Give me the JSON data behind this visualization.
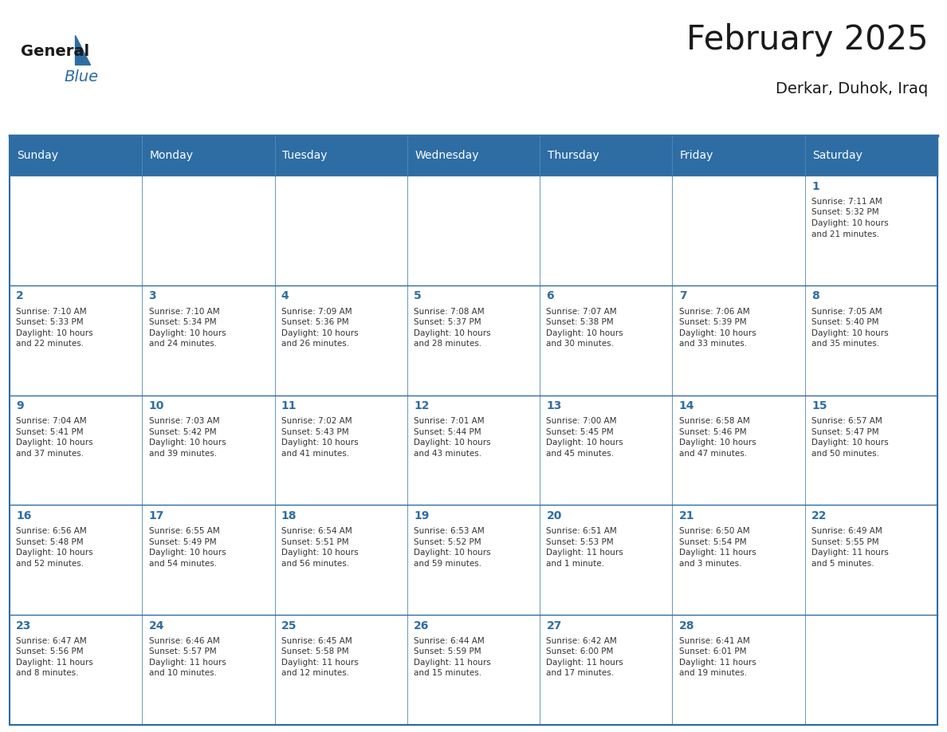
{
  "title": "February 2025",
  "subtitle": "Derkar, Duhok, Iraq",
  "header_bg_color": "#2E6DA4",
  "header_text_color": "#FFFFFF",
  "day_number_color": "#2E6DA4",
  "text_color": "#333333",
  "border_color": "#2E6DA4",
  "days_of_week": [
    "Sunday",
    "Monday",
    "Tuesday",
    "Wednesday",
    "Thursday",
    "Friday",
    "Saturday"
  ],
  "weeks": [
    [
      {
        "day": null,
        "info": null
      },
      {
        "day": null,
        "info": null
      },
      {
        "day": null,
        "info": null
      },
      {
        "day": null,
        "info": null
      },
      {
        "day": null,
        "info": null
      },
      {
        "day": null,
        "info": null
      },
      {
        "day": 1,
        "info": "Sunrise: 7:11 AM\nSunset: 5:32 PM\nDaylight: 10 hours\nand 21 minutes."
      }
    ],
    [
      {
        "day": 2,
        "info": "Sunrise: 7:10 AM\nSunset: 5:33 PM\nDaylight: 10 hours\nand 22 minutes."
      },
      {
        "day": 3,
        "info": "Sunrise: 7:10 AM\nSunset: 5:34 PM\nDaylight: 10 hours\nand 24 minutes."
      },
      {
        "day": 4,
        "info": "Sunrise: 7:09 AM\nSunset: 5:36 PM\nDaylight: 10 hours\nand 26 minutes."
      },
      {
        "day": 5,
        "info": "Sunrise: 7:08 AM\nSunset: 5:37 PM\nDaylight: 10 hours\nand 28 minutes."
      },
      {
        "day": 6,
        "info": "Sunrise: 7:07 AM\nSunset: 5:38 PM\nDaylight: 10 hours\nand 30 minutes."
      },
      {
        "day": 7,
        "info": "Sunrise: 7:06 AM\nSunset: 5:39 PM\nDaylight: 10 hours\nand 33 minutes."
      },
      {
        "day": 8,
        "info": "Sunrise: 7:05 AM\nSunset: 5:40 PM\nDaylight: 10 hours\nand 35 minutes."
      }
    ],
    [
      {
        "day": 9,
        "info": "Sunrise: 7:04 AM\nSunset: 5:41 PM\nDaylight: 10 hours\nand 37 minutes."
      },
      {
        "day": 10,
        "info": "Sunrise: 7:03 AM\nSunset: 5:42 PM\nDaylight: 10 hours\nand 39 minutes."
      },
      {
        "day": 11,
        "info": "Sunrise: 7:02 AM\nSunset: 5:43 PM\nDaylight: 10 hours\nand 41 minutes."
      },
      {
        "day": 12,
        "info": "Sunrise: 7:01 AM\nSunset: 5:44 PM\nDaylight: 10 hours\nand 43 minutes."
      },
      {
        "day": 13,
        "info": "Sunrise: 7:00 AM\nSunset: 5:45 PM\nDaylight: 10 hours\nand 45 minutes."
      },
      {
        "day": 14,
        "info": "Sunrise: 6:58 AM\nSunset: 5:46 PM\nDaylight: 10 hours\nand 47 minutes."
      },
      {
        "day": 15,
        "info": "Sunrise: 6:57 AM\nSunset: 5:47 PM\nDaylight: 10 hours\nand 50 minutes."
      }
    ],
    [
      {
        "day": 16,
        "info": "Sunrise: 6:56 AM\nSunset: 5:48 PM\nDaylight: 10 hours\nand 52 minutes."
      },
      {
        "day": 17,
        "info": "Sunrise: 6:55 AM\nSunset: 5:49 PM\nDaylight: 10 hours\nand 54 minutes."
      },
      {
        "day": 18,
        "info": "Sunrise: 6:54 AM\nSunset: 5:51 PM\nDaylight: 10 hours\nand 56 minutes."
      },
      {
        "day": 19,
        "info": "Sunrise: 6:53 AM\nSunset: 5:52 PM\nDaylight: 10 hours\nand 59 minutes."
      },
      {
        "day": 20,
        "info": "Sunrise: 6:51 AM\nSunset: 5:53 PM\nDaylight: 11 hours\nand 1 minute."
      },
      {
        "day": 21,
        "info": "Sunrise: 6:50 AM\nSunset: 5:54 PM\nDaylight: 11 hours\nand 3 minutes."
      },
      {
        "day": 22,
        "info": "Sunrise: 6:49 AM\nSunset: 5:55 PM\nDaylight: 11 hours\nand 5 minutes."
      }
    ],
    [
      {
        "day": 23,
        "info": "Sunrise: 6:47 AM\nSunset: 5:56 PM\nDaylight: 11 hours\nand 8 minutes."
      },
      {
        "day": 24,
        "info": "Sunrise: 6:46 AM\nSunset: 5:57 PM\nDaylight: 11 hours\nand 10 minutes."
      },
      {
        "day": 25,
        "info": "Sunrise: 6:45 AM\nSunset: 5:58 PM\nDaylight: 11 hours\nand 12 minutes."
      },
      {
        "day": 26,
        "info": "Sunrise: 6:44 AM\nSunset: 5:59 PM\nDaylight: 11 hours\nand 15 minutes."
      },
      {
        "day": 27,
        "info": "Sunrise: 6:42 AM\nSunset: 6:00 PM\nDaylight: 11 hours\nand 17 minutes."
      },
      {
        "day": 28,
        "info": "Sunrise: 6:41 AM\nSunset: 6:01 PM\nDaylight: 11 hours\nand 19 minutes."
      },
      {
        "day": null,
        "info": null
      }
    ]
  ],
  "logo_text_general": "General",
  "logo_text_blue": "Blue",
  "logo_triangle_color": "#2E6DA4"
}
